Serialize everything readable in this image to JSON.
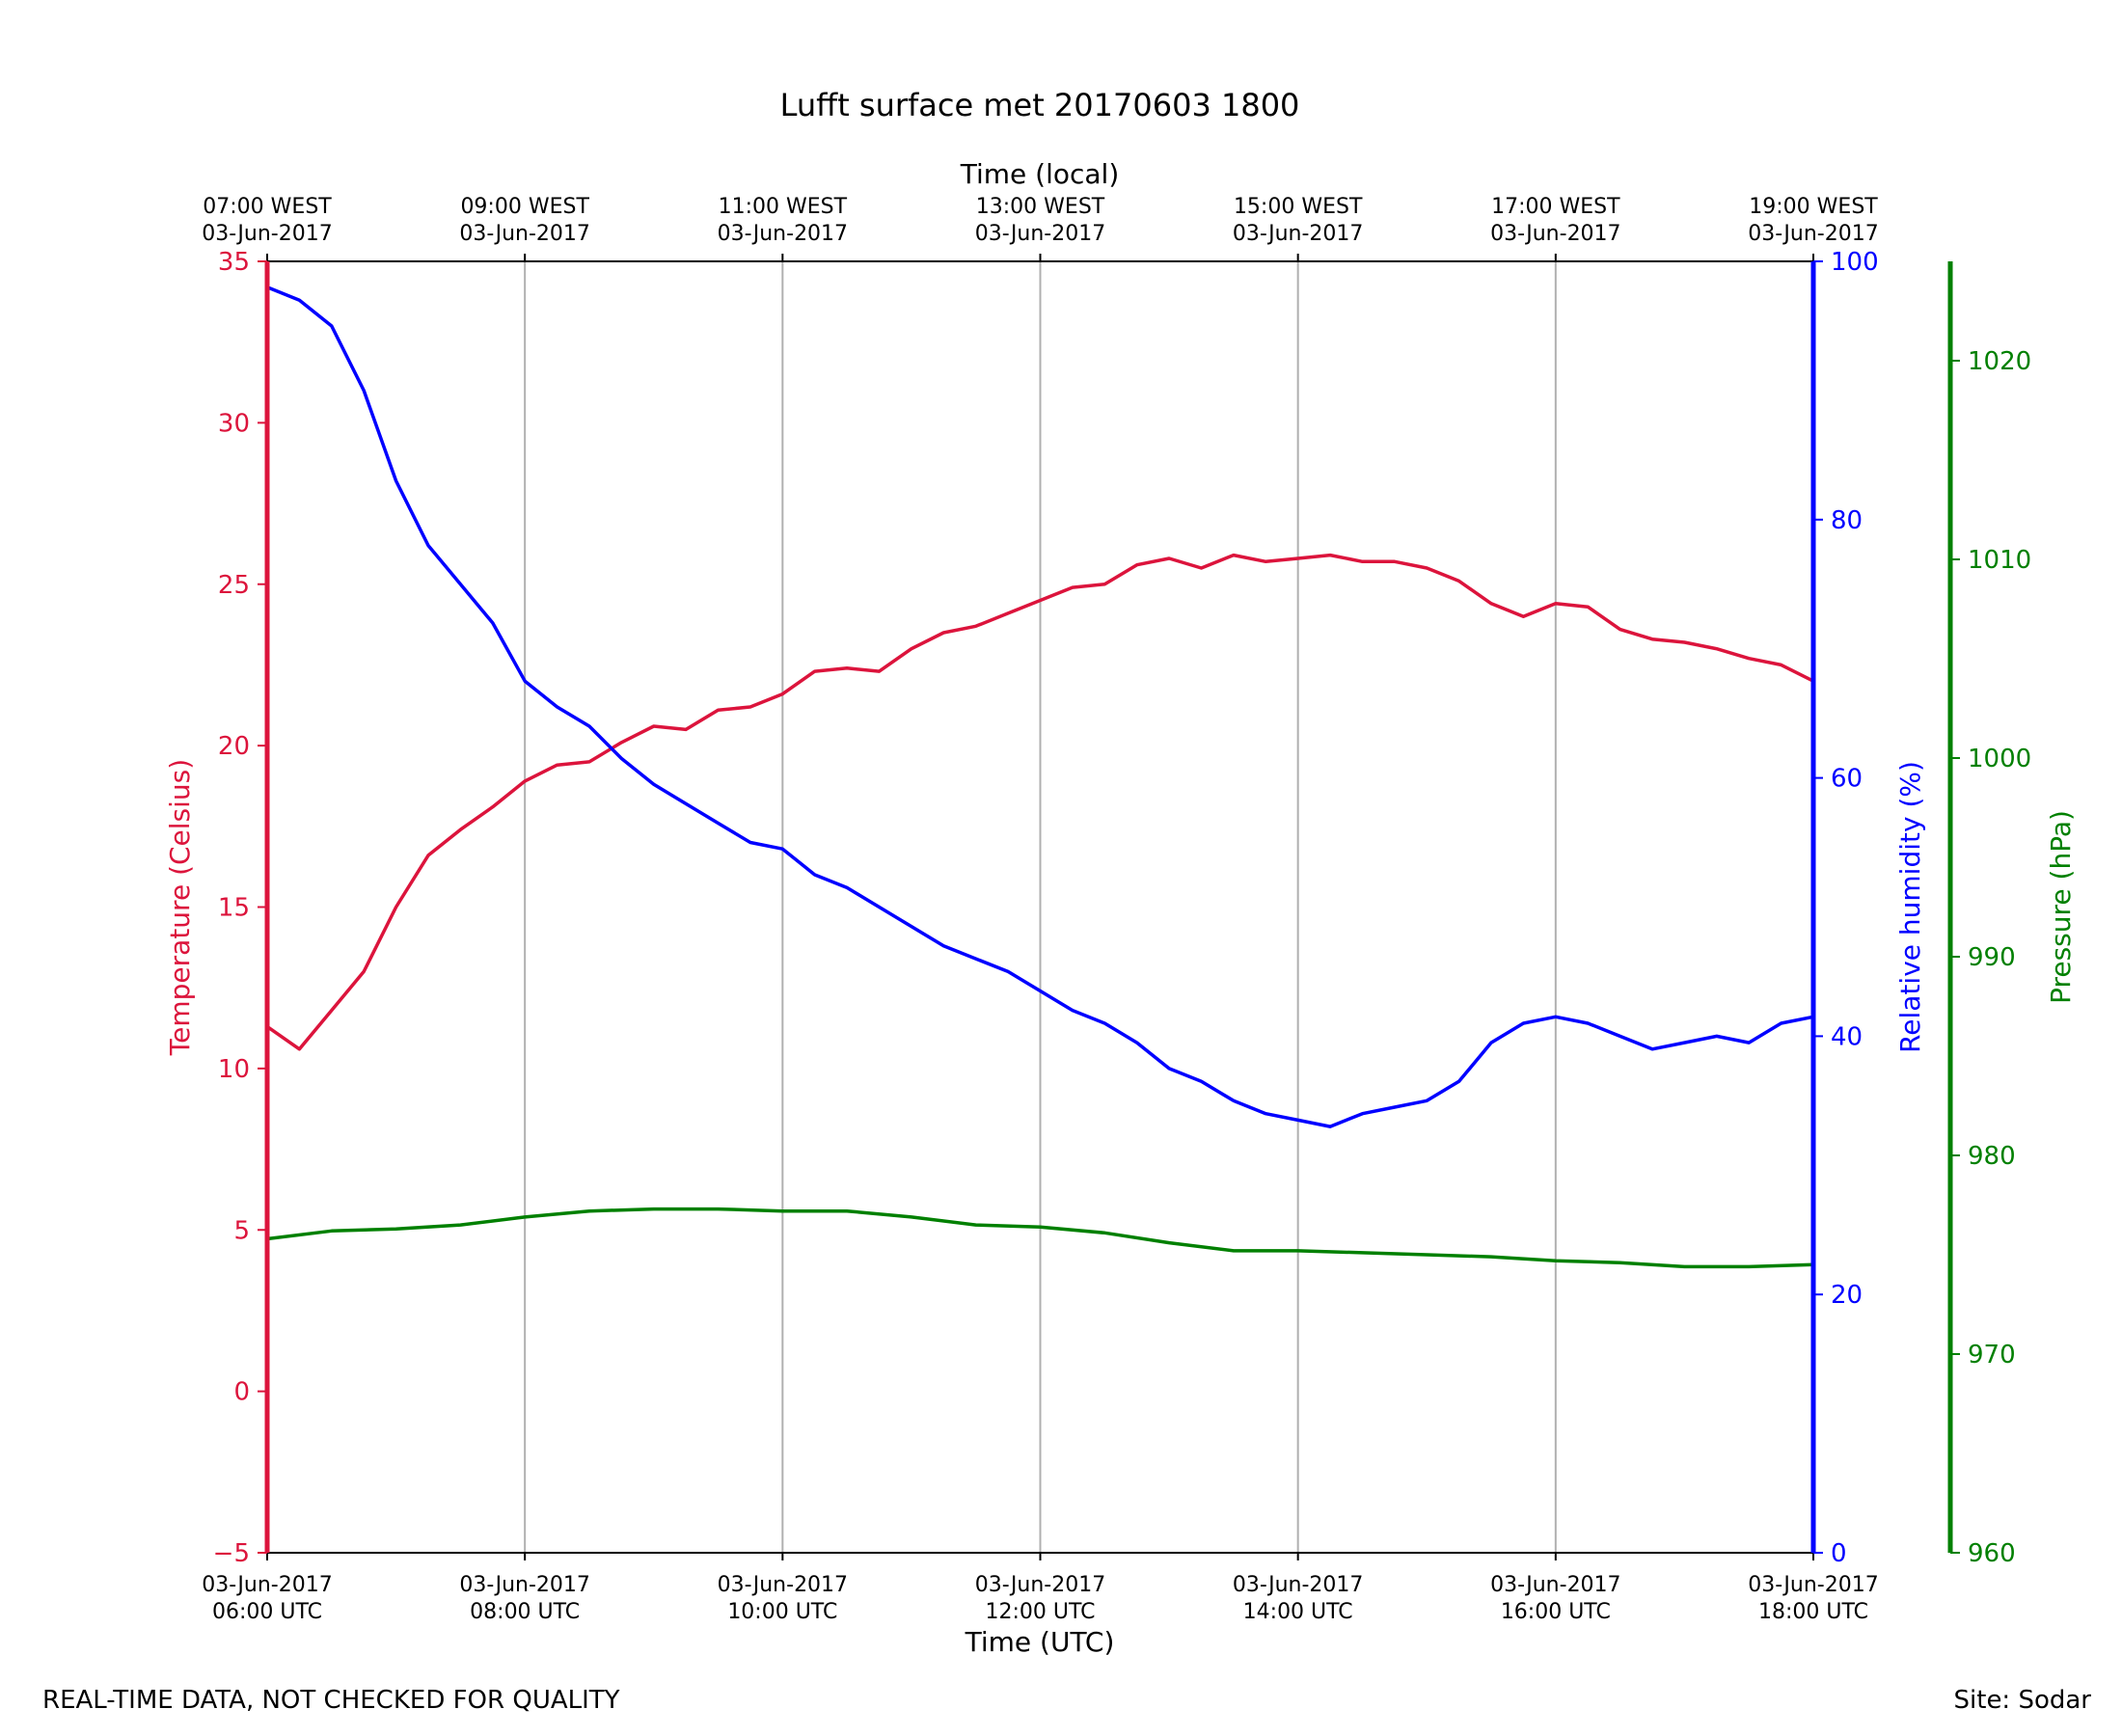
{
  "footer": {
    "disclaimer": "REAL-TIME DATA, NOT CHECKED FOR QUALITY",
    "site": "Site: Sodar"
  },
  "chart_data": {
    "type": "line",
    "title": "Lufft surface met 20170603 1800",
    "xlabel": "Time (UTC)",
    "x2label": "Time (local)",
    "xlim": [
      6,
      18
    ],
    "grid": "vertical",
    "x_ticks": [
      {
        "x": 6,
        "utc": [
          "03-Jun-2017",
          "06:00 UTC"
        ],
        "local": [
          "07:00 WEST",
          "03-Jun-2017"
        ]
      },
      {
        "x": 8,
        "utc": [
          "03-Jun-2017",
          "08:00 UTC"
        ],
        "local": [
          "09:00 WEST",
          "03-Jun-2017"
        ]
      },
      {
        "x": 10,
        "utc": [
          "03-Jun-2017",
          "10:00 UTC"
        ],
        "local": [
          "11:00 WEST",
          "03-Jun-2017"
        ]
      },
      {
        "x": 12,
        "utc": [
          "03-Jun-2017",
          "12:00 UTC"
        ],
        "local": [
          "13:00 WEST",
          "03-Jun-2017"
        ]
      },
      {
        "x": 14,
        "utc": [
          "03-Jun-2017",
          "14:00 UTC"
        ],
        "local": [
          "15:00 WEST",
          "03-Jun-2017"
        ]
      },
      {
        "x": 16,
        "utc": [
          "03-Jun-2017",
          "16:00 UTC"
        ],
        "local": [
          "17:00 WEST",
          "03-Jun-2017"
        ]
      },
      {
        "x": 18,
        "utc": [
          "03-Jun-2017",
          "18:00 UTC"
        ],
        "local": [
          "19:00 WEST",
          "03-Jun-2017"
        ]
      }
    ],
    "axes": [
      {
        "id": "temperature",
        "label": "Temperature (Celsius)",
        "color": "#dc143c",
        "ylim": [
          -5,
          35
        ],
        "ticks": [
          -5,
          0,
          5,
          10,
          15,
          20,
          25,
          30,
          35
        ],
        "side": "left"
      },
      {
        "id": "humidity",
        "label": "Relative humidity (%)",
        "color": "#0000ff",
        "ylim": [
          0,
          100
        ],
        "ticks": [
          0,
          20,
          40,
          60,
          80,
          100
        ],
        "side": "right"
      },
      {
        "id": "pressure",
        "label": "Pressure (hPa)",
        "color": "#008000",
        "ylim": [
          960,
          1025
        ],
        "ticks": [
          960,
          970,
          980,
          990,
          1000,
          1010,
          1020
        ],
        "side": "right-outer"
      }
    ],
    "series": [
      {
        "axis": "temperature",
        "color": "#dc143c",
        "x": [
          6.0,
          6.25,
          6.5,
          6.75,
          7.0,
          7.25,
          7.5,
          7.75,
          8.0,
          8.25,
          8.5,
          8.75,
          9.0,
          9.25,
          9.5,
          9.75,
          10.0,
          10.25,
          10.5,
          10.75,
          11.0,
          11.25,
          11.5,
          11.75,
          12.0,
          12.25,
          12.5,
          12.75,
          13.0,
          13.25,
          13.5,
          13.75,
          14.0,
          14.25,
          14.5,
          14.75,
          15.0,
          15.25,
          15.5,
          15.75,
          16.0,
          16.25,
          16.5,
          16.75,
          17.0,
          17.25,
          17.5,
          17.75,
          18.0
        ],
        "y": [
          11.3,
          10.6,
          11.8,
          13.0,
          15.0,
          16.6,
          17.4,
          18.1,
          18.9,
          19.4,
          19.5,
          20.1,
          20.6,
          20.5,
          21.1,
          21.2,
          21.6,
          22.3,
          22.4,
          22.3,
          23.0,
          23.5,
          23.7,
          24.1,
          24.5,
          24.9,
          25.0,
          25.6,
          25.8,
          25.5,
          25.9,
          25.7,
          25.8,
          25.9,
          25.7,
          25.7,
          25.5,
          25.1,
          24.4,
          24.0,
          24.4,
          24.3,
          23.6,
          23.3,
          23.2,
          23.0,
          22.7,
          22.5,
          22.0
        ]
      },
      {
        "axis": "humidity",
        "color": "#0000ff",
        "x": [
          6.0,
          6.25,
          6.5,
          6.75,
          7.0,
          7.25,
          7.5,
          7.75,
          8.0,
          8.25,
          8.5,
          8.75,
          9.0,
          9.25,
          9.5,
          9.75,
          10.0,
          10.25,
          10.5,
          10.75,
          11.0,
          11.25,
          11.5,
          11.75,
          12.0,
          12.25,
          12.5,
          12.75,
          13.0,
          13.25,
          13.5,
          13.75,
          14.0,
          14.25,
          14.5,
          14.75,
          15.0,
          15.25,
          15.5,
          15.75,
          16.0,
          16.25,
          16.5,
          16.75,
          17.0,
          17.25,
          17.5,
          17.75,
          18.0
        ],
        "y": [
          98.0,
          97.0,
          95.0,
          90.0,
          83.0,
          78.0,
          75.0,
          72.0,
          67.5,
          65.5,
          64.0,
          61.5,
          59.5,
          58.0,
          56.5,
          55.0,
          54.5,
          52.5,
          51.5,
          50.0,
          48.5,
          47.0,
          46.0,
          45.0,
          43.5,
          42.0,
          41.0,
          39.5,
          37.5,
          36.5,
          35.0,
          34.0,
          33.5,
          33.0,
          34.0,
          34.5,
          35.0,
          36.5,
          39.5,
          41.0,
          41.5,
          41.0,
          40.0,
          39.0,
          39.5,
          40.0,
          39.5,
          41.0,
          41.5
        ]
      },
      {
        "axis": "pressure",
        "color": "#008000",
        "x": [
          6.0,
          6.5,
          7.0,
          7.5,
          8.0,
          8.5,
          9.0,
          9.5,
          10.0,
          10.5,
          11.0,
          11.5,
          12.0,
          12.5,
          13.0,
          13.5,
          14.0,
          14.5,
          15.0,
          15.5,
          16.0,
          16.5,
          17.0,
          17.5,
          18.0
        ],
        "y": [
          975.8,
          976.2,
          976.3,
          976.5,
          976.9,
          977.2,
          977.3,
          977.3,
          977.2,
          977.2,
          976.9,
          976.5,
          976.4,
          976.1,
          975.6,
          975.2,
          975.2,
          975.1,
          975.0,
          974.9,
          974.7,
          974.6,
          974.4,
          974.4,
          974.5
        ]
      }
    ]
  }
}
